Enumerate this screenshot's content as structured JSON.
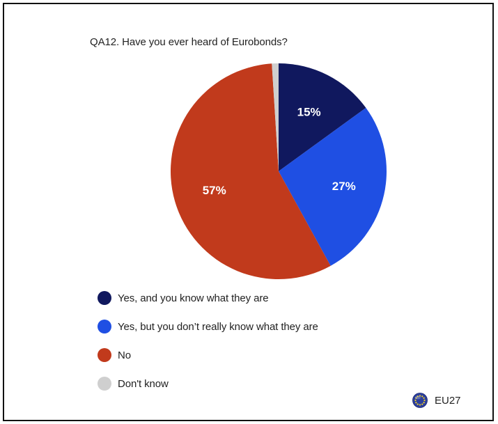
{
  "chart_data": {
    "type": "pie",
    "title": "QA12. Have you ever heard of Eurobonds?",
    "slices": [
      {
        "label": "Yes, and you know what they are",
        "value": 15,
        "display": "15%",
        "color": "#10185e"
      },
      {
        "label": "Yes, but you don’t really know what they are",
        "value": 27,
        "display": "27%",
        "color": "#1f4fe3"
      },
      {
        "label": "No",
        "value": 57,
        "display": "57%",
        "color": "#c13a1c"
      },
      {
        "label": "Don't know",
        "value": 1,
        "display": "",
        "color": "#cfcfcf"
      }
    ],
    "legend_placement": "bottom-left"
  },
  "region": {
    "label": "EU27",
    "icon": "eu-flag-icon"
  }
}
